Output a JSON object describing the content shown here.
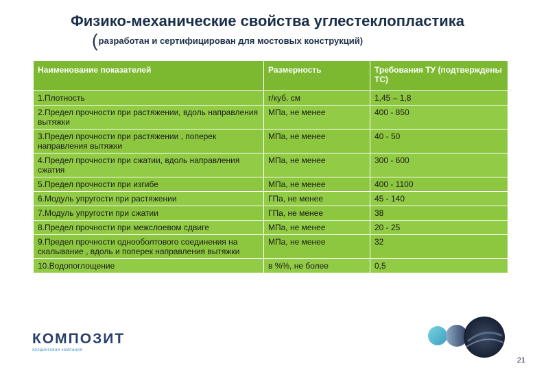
{
  "header": {
    "title": "Физико-механические свойства углестеклопластика",
    "subtitle_paren": "(",
    "subtitle": "разработан и сертифицирован для мостовых конструкций)"
  },
  "table": {
    "columns": [
      "Наименование показателей",
      "Размерность",
      "Требования ТУ (подтверждены ТС)"
    ],
    "rows": [
      {
        "name": "1.Плотность",
        "unit": "г/куб. см",
        "req": "1,45 – 1,8"
      },
      {
        "name": "2.Предел прочности при растяжении, вдоль направления вытяжки",
        "unit": " МПа, не менее",
        "req": "400 - 850"
      },
      {
        "name": "3.Предел прочности при растяжении , поперек направления вытяжки",
        "unit": "МПа, не менее",
        "req": "40 - 50"
      },
      {
        "name": "4.Предел прочности при сжатии, вдоль направления сжатия",
        "unit": "МПа, не менее",
        "req": "300 - 600"
      },
      {
        "name": "5.Предел прочности при изгибе",
        "unit": "МПа, не менее",
        "req": "400 - 1100"
      },
      {
        "name": "6.Модуль упругости при растяжении",
        "unit": "ГПа, не менее",
        "req": "45 - 140"
      },
      {
        "name": "7.Модуль упругости при сжатии",
        "unit": "ГПа, не менее",
        "req": "38"
      },
      {
        "name": "8.Предел прочности при межслоевом сдвиге",
        "unit": "МПа, не менее",
        "req": "20 - 25"
      },
      {
        "name": "9.Предел прочности однооболтового соединения на скалывание , вдоль и поперек направления вытяжки",
        "unit": "МПа, не менее",
        "req": "32"
      },
      {
        "name": "10.Водопоглощение",
        "unit": "в %%, не более",
        "req": "0,5"
      }
    ]
  },
  "logo": {
    "name": "КОМПОЗИТ",
    "tagline": "холдинговая компания"
  },
  "page_number": "21",
  "colors": {
    "table_green": "#8dc63f",
    "title_navy": "#1c2f4a",
    "logo_blue": "#2a3f6b"
  }
}
